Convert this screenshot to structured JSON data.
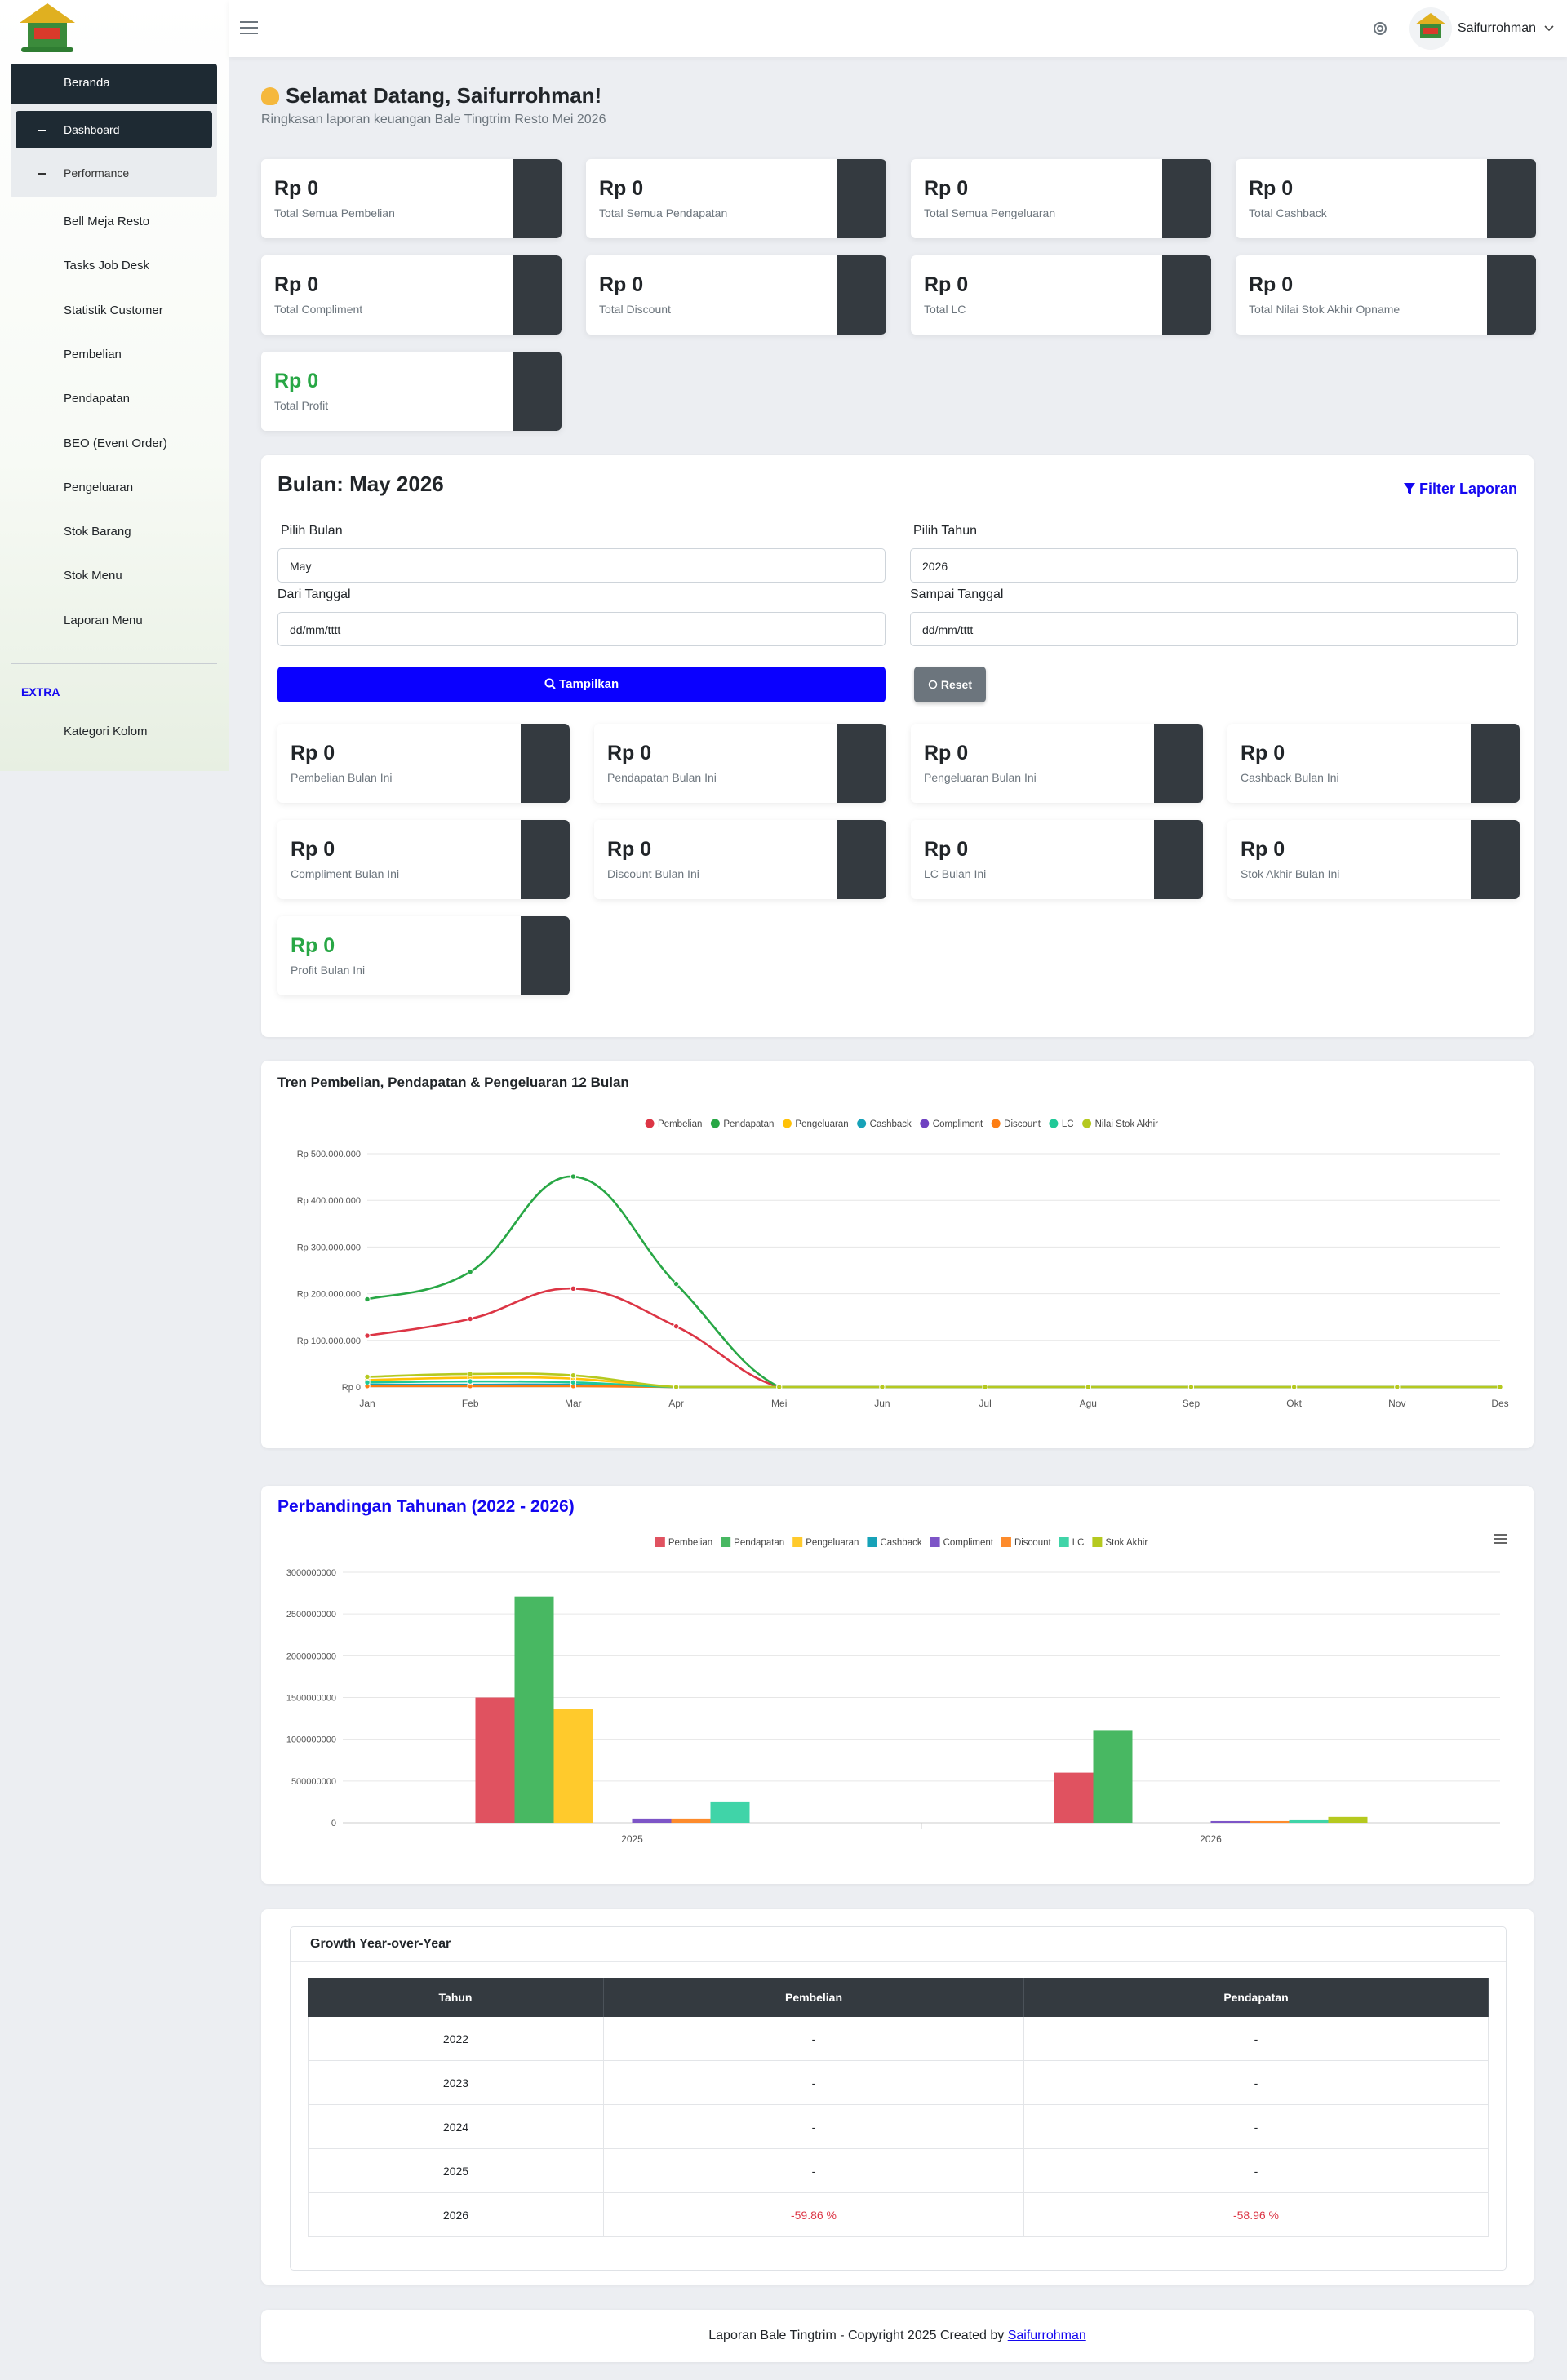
{
  "sidebar": {
    "menu": [
      {
        "label": "Beranda",
        "children": [
          "Dashboard",
          "Performance"
        ]
      },
      {
        "label": "Bell Meja Resto"
      },
      {
        "label": "Tasks Job Desk"
      },
      {
        "label": "Statistik Customer"
      },
      {
        "label": "Pembelian"
      },
      {
        "label": "Pendapatan"
      },
      {
        "label": "BEO (Event Order)"
      },
      {
        "label": "Pengeluaran"
      },
      {
        "label": "Stok Barang"
      },
      {
        "label": "Stok Menu"
      },
      {
        "label": "Laporan Menu"
      }
    ],
    "section": "EXTRA",
    "extra": [
      {
        "label": "Kategori Kolom"
      }
    ]
  },
  "topbar": {
    "user": "Saifurrohman"
  },
  "header": {
    "title": "Selamat Datang, Saifurrohman!",
    "subtitle": "Ringkasan laporan keuangan Bale Tingtrim Resto Mei 2026"
  },
  "summary_cards": [
    {
      "value": "Rp 0",
      "label": "Total Semua Pembelian",
      "color": "#dc3545"
    },
    {
      "value": "Rp 0",
      "label": "Total Semua Pendapatan",
      "color": "#28a745"
    },
    {
      "value": "Rp 0",
      "label": "Total Semua Pengeluaran",
      "color": "#ffc107"
    },
    {
      "value": "Rp 0",
      "label": "Total Cashback",
      "color": "#17a2b8"
    },
    {
      "value": "Rp 0",
      "label": "Total Compliment",
      "color": "#6f42c1"
    },
    {
      "value": "Rp 0",
      "label": "Total Discount",
      "color": "#fd7e14"
    },
    {
      "value": "Rp 0",
      "label": "Total LC",
      "color": "#20c997"
    },
    {
      "value": "Rp 0",
      "label": "Total Nilai Stok Akhir Opname",
      "color": "#b5d334"
    },
    {
      "value": "Rp 0",
      "label": "Total Profit",
      "color": "#17a2b8",
      "value_color": "#28a745"
    }
  ],
  "filter": {
    "title": "Bulan: May 2026",
    "link": "Filter Laporan",
    "fields": [
      {
        "label": "Pilih Bulan",
        "value": "May"
      },
      {
        "label": "Pilih Tahun",
        "value": "2026"
      },
      {
        "label": "Dari Tanggal",
        "value": "dd/mm/tttt"
      },
      {
        "label": "Sampai Tanggal",
        "value": "dd/mm/tttt"
      }
    ],
    "submit": "Tampilkan",
    "reset": "Reset"
  },
  "month_cards": [
    {
      "value": "Rp 0",
      "label": "Pembelian Bulan Ini",
      "color": "#20c997"
    },
    {
      "value": "Rp 0",
      "label": "Pendapatan Bulan Ini",
      "color": "#20c997"
    },
    {
      "value": "Rp 0",
      "label": "Pengeluaran Bulan Ini",
      "color": "#20c997"
    },
    {
      "value": "Rp 0",
      "label": "Cashback Bulan Ini",
      "color": "#17a2b8"
    },
    {
      "value": "Rp 0",
      "label": "Compliment Bulan Ini",
      "color": "#6f42c1"
    },
    {
      "value": "Rp 0",
      "label": "Discount Bulan Ini",
      "color": "#fd7e14"
    },
    {
      "value": "Rp 0",
      "label": "LC Bulan Ini",
      "color": "#20c997"
    },
    {
      "value": "Rp 0",
      "label": "Stok Akhir Bulan Ini",
      "color": "#b5d334"
    },
    {
      "value": "Rp 0",
      "label": "Profit Bulan Ini",
      "color": "#20c997",
      "value_color": "#28a745"
    }
  ],
  "chart_data": [
    {
      "type": "line",
      "title": "Tren Pembelian, Pendapatan & Pengeluaran 12 Bulan",
      "categories": [
        "Jan",
        "Feb",
        "Mar",
        "Apr",
        "Mei",
        "Jun",
        "Jul",
        "Agu",
        "Sep",
        "Okt",
        "Nov",
        "Des"
      ],
      "ylim": [
        0,
        500000000
      ],
      "yticks": [
        {
          "value": 0,
          "label": "Rp 0"
        },
        {
          "value": 100000000,
          "label": "Rp 100.000.000"
        },
        {
          "value": 200000000,
          "label": "Rp 200.000.000"
        },
        {
          "value": 300000000,
          "label": "Rp 300.000.000"
        },
        {
          "value": 400000000,
          "label": "Rp 400.000.000"
        },
        {
          "value": 500000000,
          "label": "Rp 500.000.000"
        }
      ],
      "grid": true,
      "series": [
        {
          "name": "Pembelian",
          "color": "#dc3545",
          "values": [
            110000000,
            146000000,
            211000000,
            130000000,
            0,
            0,
            0,
            0,
            0,
            0,
            0,
            0
          ]
        },
        {
          "name": "Pendapatan",
          "color": "#28a745",
          "values": [
            188000000,
            247000000,
            451000000,
            221000000,
            0,
            0,
            0,
            0,
            0,
            0,
            0,
            0
          ]
        },
        {
          "name": "Pengeluaran",
          "color": "#ffc107",
          "values": [
            15000000,
            20000000,
            18000000,
            0,
            0,
            0,
            0,
            0,
            0,
            0,
            0,
            0
          ]
        },
        {
          "name": "Cashback",
          "color": "#17a2b8",
          "values": [
            5000000,
            5000000,
            5000000,
            0,
            0,
            0,
            0,
            0,
            0,
            0,
            0,
            0
          ]
        },
        {
          "name": "Compliment",
          "color": "#6f42c1",
          "values": [
            3000000,
            3000000,
            3000000,
            0,
            0,
            0,
            0,
            0,
            0,
            0,
            0,
            0
          ]
        },
        {
          "name": "Discount",
          "color": "#fd7e14",
          "values": [
            2000000,
            2000000,
            2000000,
            0,
            0,
            0,
            0,
            0,
            0,
            0,
            0,
            0
          ]
        },
        {
          "name": "LC",
          "color": "#20c997",
          "values": [
            10000000,
            12000000,
            10000000,
            0,
            0,
            0,
            0,
            0,
            0,
            0,
            0,
            0
          ]
        },
        {
          "name": "Nilai Stok Akhir",
          "color": "#b5c91f",
          "values": [
            22000000,
            28000000,
            25000000,
            0,
            0,
            0,
            0,
            0,
            0,
            0,
            0,
            0
          ]
        }
      ]
    },
    {
      "type": "bar",
      "title": "Perbandingan Tahunan (2022 - 2026)",
      "categories": [
        "2025",
        "2026"
      ],
      "ylim": [
        0,
        3000000000
      ],
      "yticks": [
        0,
        500000000,
        1000000000,
        1500000000,
        2000000000,
        2500000000,
        3000000000
      ],
      "grid": true,
      "series": [
        {
          "name": "Pembelian",
          "color": "#e05260",
          "values": [
            1500000000,
            600000000
          ]
        },
        {
          "name": "Pendapatan",
          "color": "#48b862",
          "values": [
            2710000000,
            1110000000
          ]
        },
        {
          "name": "Pengeluaran",
          "color": "#ffca2c",
          "values": [
            1360000000,
            0
          ]
        },
        {
          "name": "Cashback",
          "color": "#17a2b8",
          "values": [
            0,
            0
          ]
        },
        {
          "name": "Compliment",
          "color": "#7d55c7",
          "values": [
            50000000,
            20000000
          ]
        },
        {
          "name": "Discount",
          "color": "#fd8b2c",
          "values": [
            50000000,
            20000000
          ]
        },
        {
          "name": "LC",
          "color": "#40d4a8",
          "values": [
            255000000,
            30000000
          ]
        },
        {
          "name": "Stok Akhir",
          "color": "#b5c91f",
          "values": [
            0,
            70000000
          ]
        }
      ]
    }
  ],
  "growth_table": {
    "title": "Growth Year-over-Year",
    "columns": [
      "Tahun",
      "Pembelian",
      "Pendapatan"
    ],
    "rows": [
      [
        "2022",
        "-",
        "-"
      ],
      [
        "2023",
        "-",
        "-"
      ],
      [
        "2024",
        "-",
        "-"
      ],
      [
        "2025",
        "-",
        "-"
      ],
      [
        "2026",
        "-59.86 %",
        "-58.96 %"
      ]
    ]
  },
  "footer": {
    "text": "Laporan Bale Tingtrim - Copyright 2025 Created by",
    "link": "Saifurrohman"
  }
}
